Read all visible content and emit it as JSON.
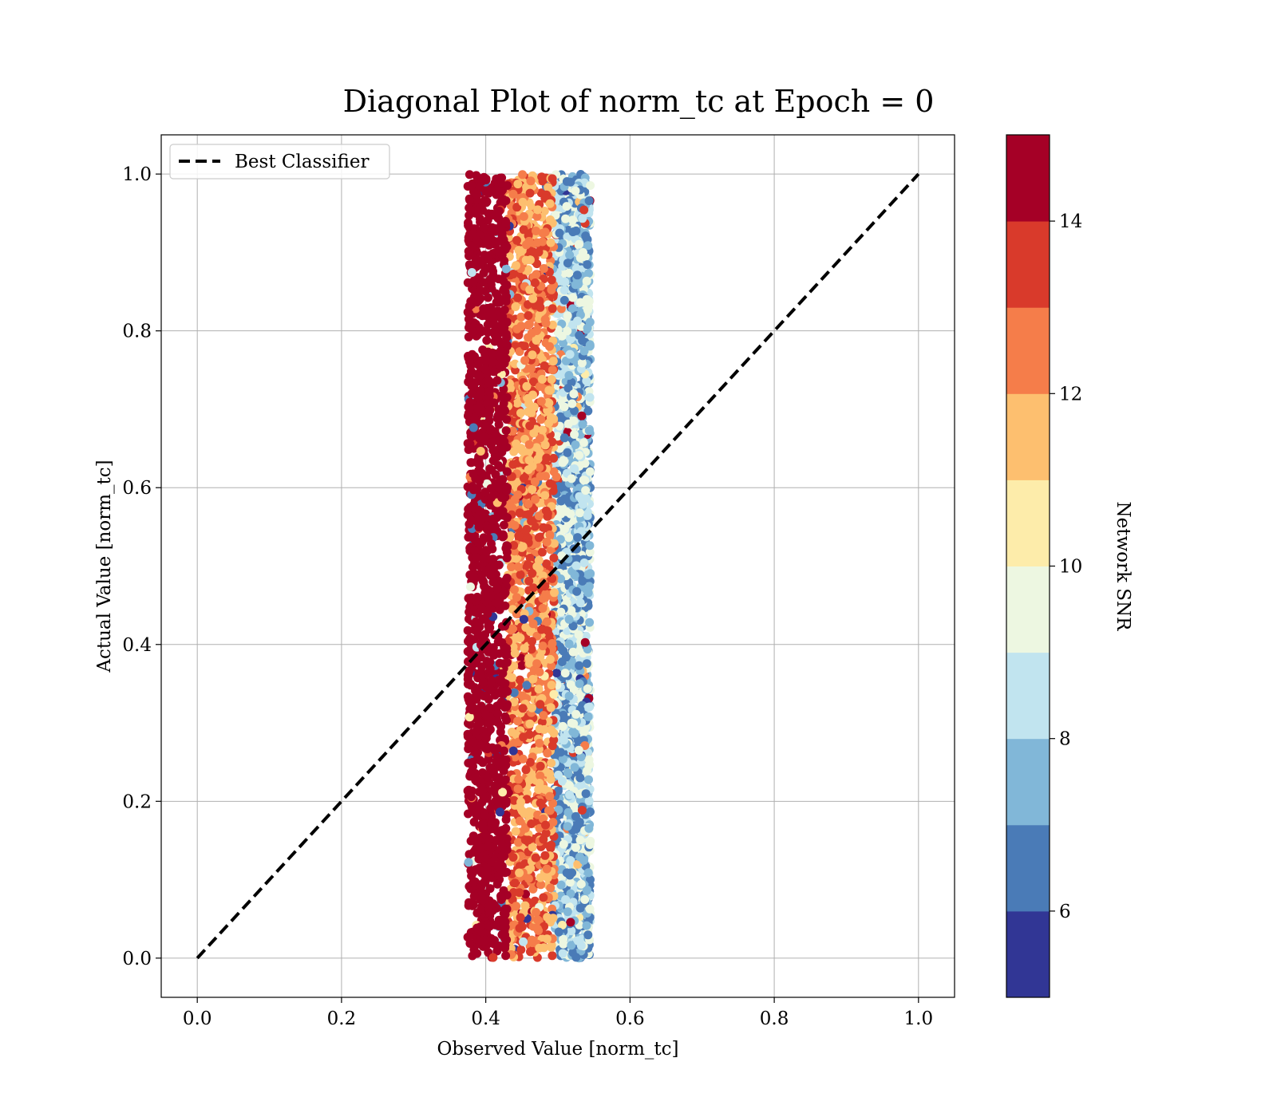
{
  "chart_data": {
    "type": "scatter",
    "title": "Diagonal Plot of norm_tc at Epoch = 0",
    "xlabel": "Observed Value [norm_tc]",
    "ylabel": "Actual Value [norm_tc]",
    "xlim": [
      -0.05,
      1.05
    ],
    "ylim": [
      -0.05,
      1.05
    ],
    "xticks": [
      "0.0",
      "0.2",
      "0.4",
      "0.6",
      "0.8",
      "1.0"
    ],
    "yticks": [
      "0.0",
      "0.2",
      "0.4",
      "0.6",
      "0.8",
      "1.0"
    ],
    "grid": true,
    "legend": {
      "placement": "top-left",
      "entries": [
        "Best Classifier"
      ]
    },
    "reference_line": {
      "name": "Best Classifier",
      "style": "dashed",
      "color": "#000000",
      "x": [
        0.0,
        1.0
      ],
      "y": [
        0.0,
        1.0
      ]
    },
    "scatter_bands": [
      {
        "x_range": [
          0.375,
          0.43
        ],
        "y_range": [
          0.0,
          1.0
        ],
        "snr_range": [
          14,
          15
        ]
      },
      {
        "x_range": [
          0.43,
          0.495
        ],
        "y_range": [
          0.0,
          1.0
        ],
        "snr_range": [
          11,
          14
        ]
      },
      {
        "x_range": [
          0.495,
          0.545
        ],
        "y_range": [
          0.0,
          1.0
        ],
        "snr_range": [
          6,
          10
        ]
      }
    ],
    "colorbar": {
      "label": "Network SNR",
      "range": [
        5,
        15
      ],
      "ticks": [
        "6",
        "8",
        "10",
        "12",
        "14"
      ],
      "boundaries": [
        5,
        6,
        7,
        8,
        9,
        10,
        11,
        12,
        13,
        14,
        15
      ],
      "colors": [
        "#313695",
        "#4a7bb7",
        "#81b7d8",
        "#c1e4ef",
        "#edf7e1",
        "#fdecaa",
        "#fdbf6f",
        "#f57d4a",
        "#d93a2b",
        "#a50026"
      ]
    }
  }
}
